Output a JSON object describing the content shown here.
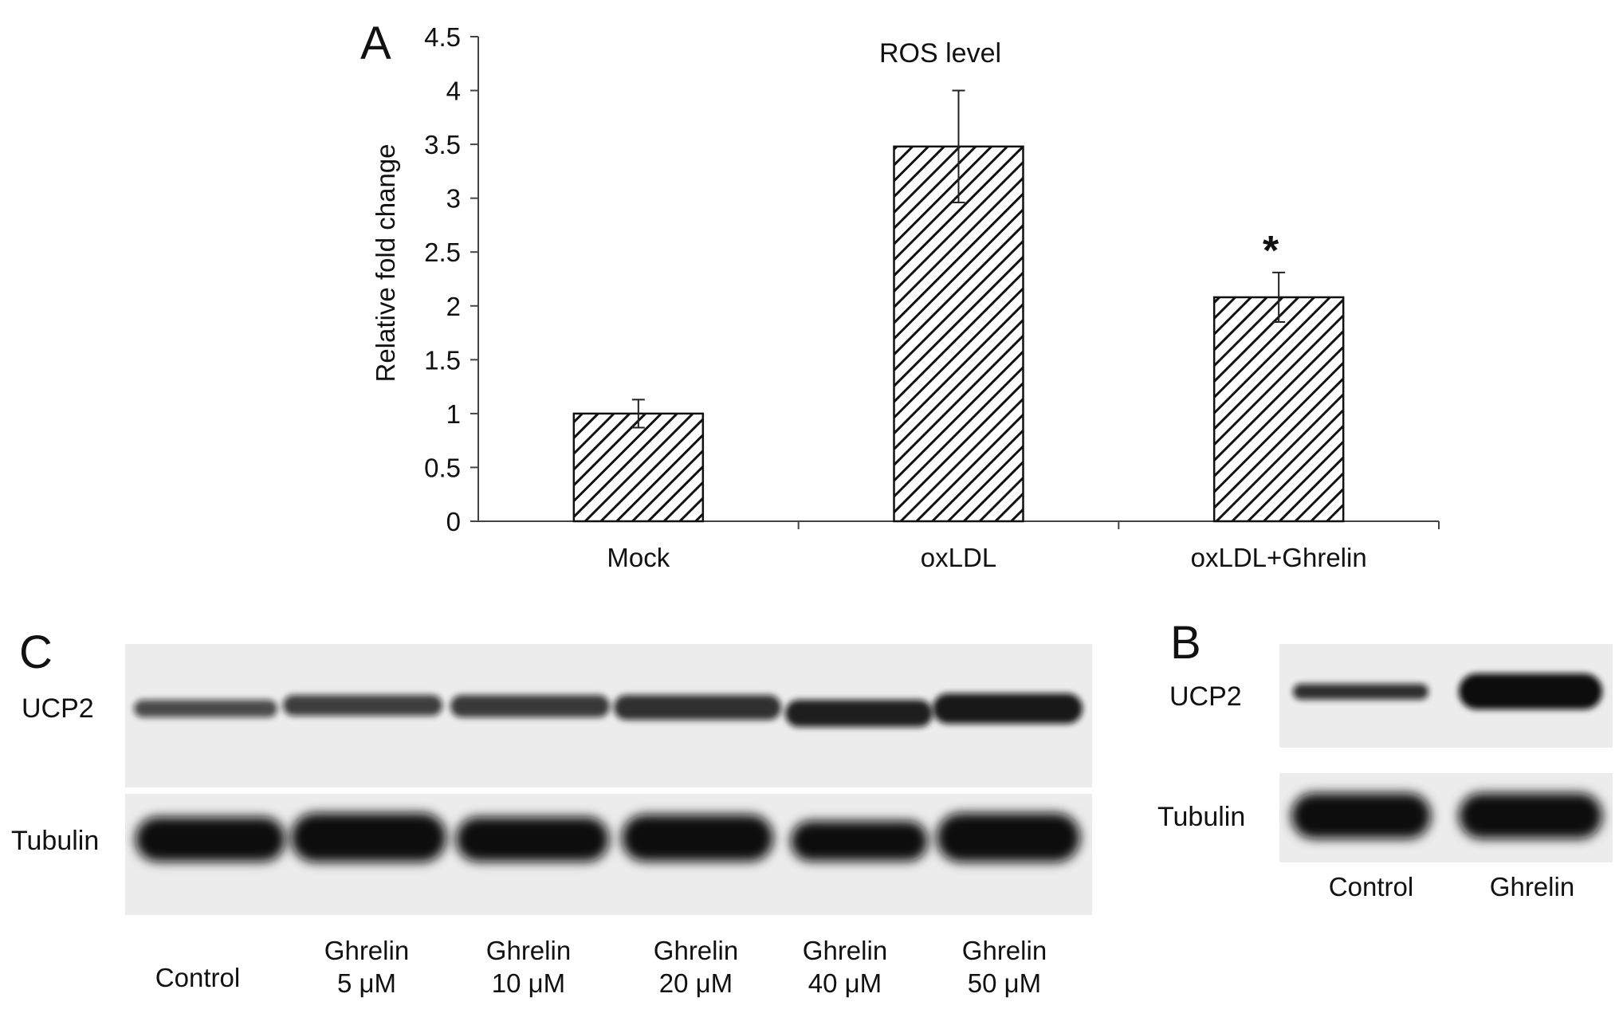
{
  "panel_a": {
    "letter": "A",
    "chart_data": {
      "type": "bar",
      "title": "ROS level",
      "xlabel": "",
      "ylabel": "Relative fold change",
      "categories": [
        "Mock",
        "oxLDL",
        "oxLDL+Ghrelin"
      ],
      "values": [
        1.0,
        3.48,
        2.08
      ],
      "errors": [
        0.13,
        0.52,
        0.23
      ],
      "significance": [
        "",
        "",
        "*"
      ],
      "ylim": [
        0,
        4.5
      ],
      "yticks": [
        "0",
        "0.5",
        "1",
        "1.5",
        "2",
        "2.5",
        "3",
        "3.5",
        "4",
        "4.5"
      ],
      "fill": "diagonal-hatch",
      "grid": false
    }
  },
  "panel_b": {
    "letter": "B",
    "rows": [
      "UCP2",
      "Tubulin"
    ],
    "lanes": [
      "Control",
      "Ghrelin"
    ],
    "colors": {
      "band": "#0b0b0b",
      "blot_bg": "#ececec"
    }
  },
  "panel_c": {
    "letter": "C",
    "rows": [
      "UCP2",
      "Tubulin"
    ],
    "lanes": [
      {
        "line1": "Control",
        "line2": ""
      },
      {
        "line1": "Ghrelin",
        "line2": "5 μM"
      },
      {
        "line1": "Ghrelin",
        "line2": "10 μM"
      },
      {
        "line1": "Ghrelin",
        "line2": "20 μM"
      },
      {
        "line1": "Ghrelin",
        "line2": "40 μM"
      },
      {
        "line1": "Ghrelin",
        "line2": "50 μM"
      }
    ],
    "colors": {
      "band": "#0b0b0b",
      "blot_bg": "#ececec"
    }
  }
}
